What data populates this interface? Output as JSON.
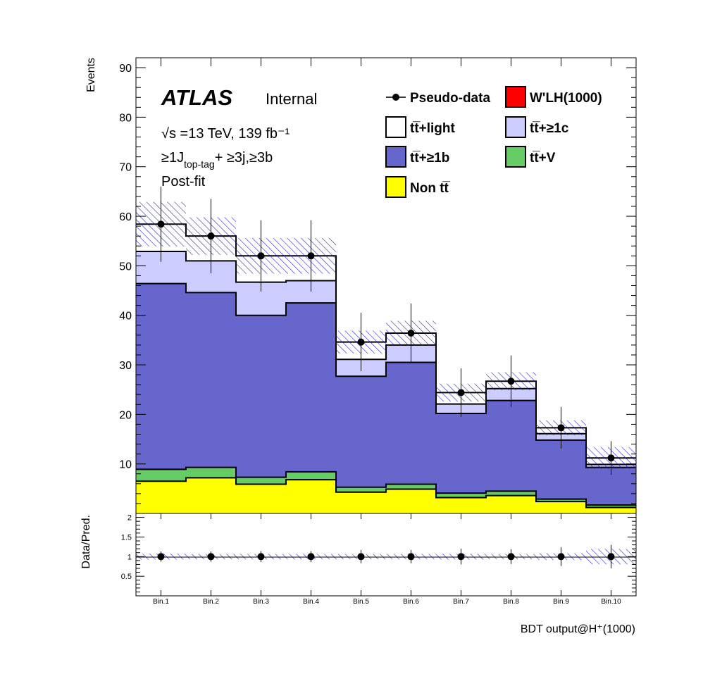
{
  "chart_data": {
    "type": "bar",
    "stacked": true,
    "categories": [
      "Bin.1",
      "Bin.2",
      "Bin.3",
      "Bin.4",
      "Bin.5",
      "Bin.6",
      "Bin.7",
      "Bin.8",
      "Bin.9",
      "Bin.10"
    ],
    "series": [
      {
        "name": "Non tt̅",
        "color": "#ffff00",
        "values": [
          6.5,
          7.2,
          5.9,
          6.8,
          4.3,
          4.9,
          3.2,
          3.6,
          2.4,
          1.2
        ]
      },
      {
        "name": "tt̅+V",
        "color": "#66cc66",
        "values": [
          2.4,
          2.1,
          1.4,
          1.6,
          1.0,
          1.0,
          0.9,
          0.9,
          0.5,
          0.5
        ]
      },
      {
        "name": "tt̅+≥1b",
        "color": "#6666cc",
        "values": [
          37.5,
          35.3,
          32.7,
          34.1,
          22.4,
          24.6,
          16.1,
          18.3,
          11.9,
          7.6
        ]
      },
      {
        "name": "tt̅+≥1c",
        "color": "#ccccff",
        "values": [
          6.5,
          6.4,
          6.7,
          4.5,
          3.4,
          3.5,
          1.9,
          2.4,
          1.3,
          0.6
        ]
      },
      {
        "name": "tt̅+light",
        "color": "#ffffff",
        "values": [
          5.5,
          5.0,
          5.3,
          5.0,
          3.5,
          2.4,
          2.3,
          1.5,
          1.2,
          1.3
        ]
      },
      {
        "name": "W'LH(1000)",
        "color": "#ff0000",
        "values": [
          0,
          0,
          0,
          0,
          0,
          0,
          0,
          0,
          0,
          0
        ]
      }
    ],
    "totals": [
      58.4,
      56.0,
      52.0,
      52.0,
      34.6,
      36.4,
      24.4,
      26.7,
      17.3,
      11.2
    ],
    "uncertainty": [
      4.5,
      3.8,
      3.6,
      3.6,
      2.3,
      2.5,
      1.8,
      1.8,
      1.5,
      2.2
    ],
    "data": {
      "name": "Pseudo-data",
      "values": [
        58.4,
        56.0,
        52.0,
        52.0,
        34.6,
        36.4,
        24.4,
        26.7,
        17.3,
        11.2
      ],
      "errors": [
        7.6,
        7.5,
        7.2,
        7.2,
        5.9,
        6.0,
        4.9,
        5.2,
        4.2,
        3.4
      ]
    },
    "ratio": {
      "values": [
        1,
        1,
        1,
        1,
        1,
        1,
        1,
        1,
        1,
        1
      ],
      "errors": [
        0.13,
        0.13,
        0.14,
        0.14,
        0.17,
        0.17,
        0.2,
        0.19,
        0.24,
        0.3
      ],
      "band": [
        0.077,
        0.068,
        0.069,
        0.069,
        0.066,
        0.069,
        0.074,
        0.067,
        0.087,
        0.196
      ],
      "ylim": [
        0,
        2.1
      ],
      "yticks": [
        0.5,
        1,
        1.5,
        2
      ]
    },
    "ylim": [
      0,
      92
    ],
    "yticks": [
      10,
      20,
      30,
      40,
      50,
      60,
      70,
      80,
      90
    ],
    "ylabel": "Events",
    "ratio_ylabel": "Data/Pred.",
    "xlabel": "BDT output@H⁺(1000)",
    "legend_position": "top-right"
  },
  "labels": {
    "atlas": "ATLAS",
    "status": "Internal",
    "energy": "√s =13 TeV, 139 fb⁻¹",
    "region": "≥1J",
    "region_sub": "top-tag",
    "region_rest": "+ ≥3j,≥3b",
    "fit": "Post-fit"
  }
}
